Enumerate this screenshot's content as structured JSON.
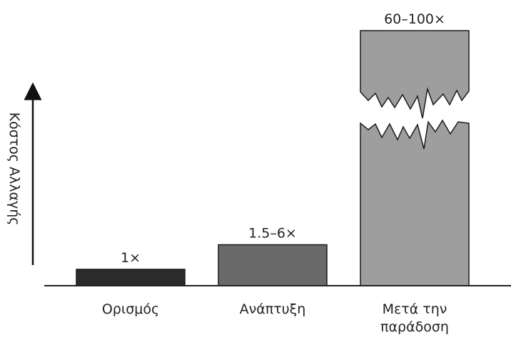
{
  "chart_data": {
    "type": "bar",
    "ylabel": "Κόστος Αλλαγής",
    "categories": [
      "Ορισμός",
      "Ανάπτυξη",
      "Μετά την\nπαράδοση"
    ],
    "values": [
      1,
      2.5,
      7.5
    ],
    "value_labels": [
      "1×",
      "1.5–6×",
      "60–100×"
    ],
    "broken_axis_bar_index": 2,
    "colors": [
      "#2b2b2b",
      "#6a6a6a",
      "#9e9e9e"
    ],
    "axis_color": "#111111"
  }
}
